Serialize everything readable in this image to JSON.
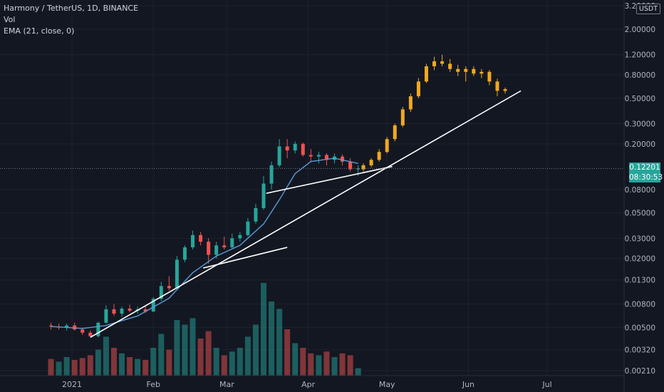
{
  "legend": {
    "symbol": "Harmony / TetherUS, 1D, BINANCE",
    "vol": "Vol",
    "ema": "EMA (21, close, 0)"
  },
  "currency": "USDT",
  "price_badge": {
    "price": "0.12201",
    "countdown": "08:30:53",
    "color": "#26a69a"
  },
  "colors": {
    "background": "#131722",
    "grid": "#1e222d",
    "up": "#26a69a",
    "down": "#ef5350",
    "projection": "#f0a820",
    "ema": "#5b9bd5",
    "trendline": "#ffffff"
  },
  "chart_data": {
    "type": "candlestick",
    "scale": "log",
    "ylim": [
      0.0019,
      3.3
    ],
    "y_ticks": [
      "3.20000",
      "2.00000",
      "1.20000",
      "0.80000",
      "0.50000",
      "0.30000",
      "0.20000",
      "0.08000",
      "0.05000",
      "0.03000",
      "0.02000",
      "0.01300",
      "0.00800",
      "0.00500",
      "0.00320",
      "0.00210"
    ],
    "x_ticks": [
      "2021",
      "Feb",
      "Mar",
      "Apr",
      "May",
      "Jun",
      "Jul"
    ],
    "last_price": 0.12201,
    "ohlc": [
      {
        "date": "2020-12-24",
        "o": 0.0052,
        "h": 0.0055,
        "l": 0.0048,
        "c": 0.0051
      },
      {
        "date": "2020-12-27",
        "o": 0.0051,
        "h": 0.0054,
        "l": 0.0048,
        "c": 0.005
      },
      {
        "date": "2020-12-30",
        "o": 0.005,
        "h": 0.0054,
        "l": 0.0047,
        "c": 0.0052
      },
      {
        "date": "2021-01-02",
        "o": 0.0052,
        "h": 0.0055,
        "l": 0.0047,
        "c": 0.0048
      },
      {
        "date": "2021-01-05",
        "o": 0.0048,
        "h": 0.005,
        "l": 0.0043,
        "c": 0.0045
      },
      {
        "date": "2021-01-08",
        "o": 0.0045,
        "h": 0.0047,
        "l": 0.0041,
        "c": 0.0042
      },
      {
        "date": "2021-01-11",
        "o": 0.0042,
        "h": 0.0056,
        "l": 0.0041,
        "c": 0.0055
      },
      {
        "date": "2021-01-14",
        "o": 0.0055,
        "h": 0.0078,
        "l": 0.0054,
        "c": 0.0072
      },
      {
        "date": "2021-01-17",
        "o": 0.0072,
        "h": 0.008,
        "l": 0.0063,
        "c": 0.0066
      },
      {
        "date": "2021-01-20",
        "o": 0.0066,
        "h": 0.0076,
        "l": 0.0062,
        "c": 0.0073
      },
      {
        "date": "2021-01-23",
        "o": 0.0073,
        "h": 0.0079,
        "l": 0.0068,
        "c": 0.007
      },
      {
        "date": "2021-01-26",
        "o": 0.007,
        "h": 0.0076,
        "l": 0.0066,
        "c": 0.0072
      },
      {
        "date": "2021-01-29",
        "o": 0.0072,
        "h": 0.0078,
        "l": 0.0067,
        "c": 0.0069
      },
      {
        "date": "2021-02-01",
        "o": 0.0069,
        "h": 0.0092,
        "l": 0.0068,
        "c": 0.0089
      },
      {
        "date": "2021-02-04",
        "o": 0.0089,
        "h": 0.0125,
        "l": 0.0085,
        "c": 0.0115
      },
      {
        "date": "2021-02-07",
        "o": 0.0115,
        "h": 0.014,
        "l": 0.0105,
        "c": 0.011
      },
      {
        "date": "2021-02-10",
        "o": 0.011,
        "h": 0.021,
        "l": 0.0108,
        "c": 0.0195
      },
      {
        "date": "2021-02-13",
        "o": 0.0195,
        "h": 0.026,
        "l": 0.0185,
        "c": 0.025
      },
      {
        "date": "2021-02-16",
        "o": 0.025,
        "h": 0.035,
        "l": 0.024,
        "c": 0.032
      },
      {
        "date": "2021-02-19",
        "o": 0.032,
        "h": 0.034,
        "l": 0.026,
        "c": 0.028
      },
      {
        "date": "2021-02-22",
        "o": 0.028,
        "h": 0.03,
        "l": 0.018,
        "c": 0.0215
      },
      {
        "date": "2021-02-25",
        "o": 0.0215,
        "h": 0.028,
        "l": 0.02,
        "c": 0.026
      },
      {
        "date": "2021-02-28",
        "o": 0.026,
        "h": 0.031,
        "l": 0.024,
        "c": 0.025
      },
      {
        "date": "2021-03-03",
        "o": 0.025,
        "h": 0.033,
        "l": 0.0245,
        "c": 0.03
      },
      {
        "date": "2021-03-06",
        "o": 0.03,
        "h": 0.034,
        "l": 0.028,
        "c": 0.032
      },
      {
        "date": "2021-03-09",
        "o": 0.032,
        "h": 0.045,
        "l": 0.031,
        "c": 0.042
      },
      {
        "date": "2021-03-12",
        "o": 0.042,
        "h": 0.06,
        "l": 0.04,
        "c": 0.055
      },
      {
        "date": "2021-03-15",
        "o": 0.055,
        "h": 0.105,
        "l": 0.053,
        "c": 0.09
      },
      {
        "date": "2021-03-18",
        "o": 0.09,
        "h": 0.14,
        "l": 0.08,
        "c": 0.13
      },
      {
        "date": "2021-03-21",
        "o": 0.13,
        "h": 0.22,
        "l": 0.125,
        "c": 0.19
      },
      {
        "date": "2021-03-24",
        "o": 0.19,
        "h": 0.22,
        "l": 0.15,
        "c": 0.175
      },
      {
        "date": "2021-03-27",
        "o": 0.175,
        "h": 0.21,
        "l": 0.165,
        "c": 0.2
      },
      {
        "date": "2021-03-30",
        "o": 0.2,
        "h": 0.205,
        "l": 0.155,
        "c": 0.16
      },
      {
        "date": "2021-04-02",
        "o": 0.16,
        "h": 0.18,
        "l": 0.14,
        "c": 0.155
      },
      {
        "date": "2021-04-05",
        "o": 0.155,
        "h": 0.17,
        "l": 0.135,
        "c": 0.16
      },
      {
        "date": "2021-04-08",
        "o": 0.16,
        "h": 0.165,
        "l": 0.13,
        "c": 0.145
      },
      {
        "date": "2021-04-11",
        "o": 0.145,
        "h": 0.165,
        "l": 0.135,
        "c": 0.155
      },
      {
        "date": "2021-04-14",
        "o": 0.155,
        "h": 0.162,
        "l": 0.13,
        "c": 0.14
      },
      {
        "date": "2021-04-17",
        "o": 0.14,
        "h": 0.15,
        "l": 0.115,
        "c": 0.12
      },
      {
        "date": "2021-04-20",
        "o": 0.12,
        "h": 0.13,
        "l": 0.105,
        "c": 0.122
      }
    ],
    "volume": [
      {
        "date": "2020-12-24",
        "v": 0.18,
        "dir": "down"
      },
      {
        "date": "2020-12-27",
        "v": 0.15,
        "dir": "up"
      },
      {
        "date": "2020-12-30",
        "v": 0.2,
        "dir": "up"
      },
      {
        "date": "2021-01-02",
        "v": 0.17,
        "dir": "down"
      },
      {
        "date": "2021-01-05",
        "v": 0.19,
        "dir": "down"
      },
      {
        "date": "2021-01-08",
        "v": 0.22,
        "dir": "down"
      },
      {
        "date": "2021-01-11",
        "v": 0.28,
        "dir": "up"
      },
      {
        "date": "2021-01-14",
        "v": 0.42,
        "dir": "up"
      },
      {
        "date": "2021-01-17",
        "v": 0.3,
        "dir": "down"
      },
      {
        "date": "2021-01-20",
        "v": 0.24,
        "dir": "up"
      },
      {
        "date": "2021-01-23",
        "v": 0.2,
        "dir": "down"
      },
      {
        "date": "2021-01-26",
        "v": 0.18,
        "dir": "up"
      },
      {
        "date": "2021-01-29",
        "v": 0.17,
        "dir": "down"
      },
      {
        "date": "2021-02-01",
        "v": 0.3,
        "dir": "up"
      },
      {
        "date": "2021-02-04",
        "v": 0.45,
        "dir": "up"
      },
      {
        "date": "2021-02-07",
        "v": 0.28,
        "dir": "down"
      },
      {
        "date": "2021-02-10",
        "v": 0.6,
        "dir": "up"
      },
      {
        "date": "2021-02-13",
        "v": 0.55,
        "dir": "up"
      },
      {
        "date": "2021-02-16",
        "v": 0.62,
        "dir": "up"
      },
      {
        "date": "2021-02-19",
        "v": 0.4,
        "dir": "down"
      },
      {
        "date": "2021-02-22",
        "v": 0.48,
        "dir": "down"
      },
      {
        "date": "2021-02-25",
        "v": 0.3,
        "dir": "up"
      },
      {
        "date": "2021-02-28",
        "v": 0.22,
        "dir": "down"
      },
      {
        "date": "2021-03-03",
        "v": 0.26,
        "dir": "up"
      },
      {
        "date": "2021-03-06",
        "v": 0.3,
        "dir": "up"
      },
      {
        "date": "2021-03-09",
        "v": 0.42,
        "dir": "up"
      },
      {
        "date": "2021-03-12",
        "v": 0.55,
        "dir": "up"
      },
      {
        "date": "2021-03-15",
        "v": 1.0,
        "dir": "up"
      },
      {
        "date": "2021-03-18",
        "v": 0.8,
        "dir": "up"
      },
      {
        "date": "2021-03-21",
        "v": 0.72,
        "dir": "up"
      },
      {
        "date": "2021-03-24",
        "v": 0.5,
        "dir": "down"
      },
      {
        "date": "2021-03-27",
        "v": 0.35,
        "dir": "up"
      },
      {
        "date": "2021-03-30",
        "v": 0.3,
        "dir": "down"
      },
      {
        "date": "2021-04-02",
        "v": 0.24,
        "dir": "down"
      },
      {
        "date": "2021-04-05",
        "v": 0.22,
        "dir": "up"
      },
      {
        "date": "2021-04-08",
        "v": 0.26,
        "dir": "down"
      },
      {
        "date": "2021-04-11",
        "v": 0.2,
        "dir": "up"
      },
      {
        "date": "2021-04-14",
        "v": 0.24,
        "dir": "down"
      },
      {
        "date": "2021-04-17",
        "v": 0.22,
        "dir": "down"
      },
      {
        "date": "2021-04-20",
        "v": 0.08,
        "dir": "up"
      }
    ],
    "ema21": [
      {
        "date": "2020-12-24",
        "y": 0.0051
      },
      {
        "date": "2021-01-05",
        "y": 0.0049
      },
      {
        "date": "2021-01-14",
        "y": 0.0052
      },
      {
        "date": "2021-01-26",
        "y": 0.0063
      },
      {
        "date": "2021-02-07",
        "y": 0.009
      },
      {
        "date": "2021-02-16",
        "y": 0.015
      },
      {
        "date": "2021-02-25",
        "y": 0.021
      },
      {
        "date": "2021-03-06",
        "y": 0.026
      },
      {
        "date": "2021-03-15",
        "y": 0.04
      },
      {
        "date": "2021-03-21",
        "y": 0.065
      },
      {
        "date": "2021-03-27",
        "y": 0.11
      },
      {
        "date": "2021-04-02",
        "y": 0.14
      },
      {
        "date": "2021-04-11",
        "y": 0.15
      },
      {
        "date": "2021-04-20",
        "y": 0.135
      }
    ],
    "projection": [
      {
        "date": "2021-04-22",
        "o": 0.12,
        "h": 0.135,
        "l": 0.115,
        "c": 0.13
      },
      {
        "date": "2021-04-25",
        "o": 0.13,
        "h": 0.15,
        "l": 0.125,
        "c": 0.145
      },
      {
        "date": "2021-04-28",
        "o": 0.145,
        "h": 0.18,
        "l": 0.14,
        "c": 0.17
      },
      {
        "date": "2021-05-01",
        "o": 0.17,
        "h": 0.23,
        "l": 0.165,
        "c": 0.22
      },
      {
        "date": "2021-05-04",
        "o": 0.22,
        "h": 0.3,
        "l": 0.21,
        "c": 0.29
      },
      {
        "date": "2021-05-07",
        "o": 0.29,
        "h": 0.42,
        "l": 0.28,
        "c": 0.4
      },
      {
        "date": "2021-05-10",
        "o": 0.4,
        "h": 0.55,
        "l": 0.38,
        "c": 0.52
      },
      {
        "date": "2021-05-13",
        "o": 0.52,
        "h": 0.75,
        "l": 0.5,
        "c": 0.7
      },
      {
        "date": "2021-05-16",
        "o": 0.7,
        "h": 1.0,
        "l": 0.68,
        "c": 0.95
      },
      {
        "date": "2021-05-19",
        "o": 0.95,
        "h": 1.15,
        "l": 0.88,
        "c": 1.05
      },
      {
        "date": "2021-05-22",
        "o": 1.05,
        "h": 1.2,
        "l": 0.95,
        "c": 1.0
      },
      {
        "date": "2021-05-25",
        "o": 1.0,
        "h": 1.1,
        "l": 0.85,
        "c": 0.9
      },
      {
        "date": "2021-05-28",
        "o": 0.9,
        "h": 0.98,
        "l": 0.78,
        "c": 0.85
      },
      {
        "date": "2021-05-31",
        "o": 0.85,
        "h": 0.95,
        "l": 0.7,
        "c": 0.9
      },
      {
        "date": "2021-06-03",
        "o": 0.9,
        "h": 0.95,
        "l": 0.78,
        "c": 0.82
      },
      {
        "date": "2021-06-06",
        "o": 0.82,
        "h": 0.9,
        "l": 0.75,
        "c": 0.85
      },
      {
        "date": "2021-06-09",
        "o": 0.85,
        "h": 0.88,
        "l": 0.65,
        "c": 0.7
      },
      {
        "date": "2021-06-12",
        "o": 0.7,
        "h": 0.74,
        "l": 0.52,
        "c": 0.58
      },
      {
        "date": "2021-06-15",
        "o": 0.58,
        "h": 0.62,
        "l": 0.55,
        "c": 0.6
      }
    ],
    "trendlines": [
      {
        "name": "trendline-long",
        "from": {
          "date": "2021-01-08",
          "y": 0.0041
        },
        "to": {
          "date": "2021-06-21",
          "y": 0.58
        }
      },
      {
        "name": "trendline-feb",
        "from": {
          "date": "2021-02-20",
          "y": 0.0165
        },
        "to": {
          "date": "2021-03-24",
          "y": 0.025
        }
      },
      {
        "name": "trendline-mar",
        "from": {
          "date": "2021-03-16",
          "y": 0.074
        },
        "to": {
          "date": "2021-05-03",
          "y": 0.127
        }
      }
    ]
  }
}
